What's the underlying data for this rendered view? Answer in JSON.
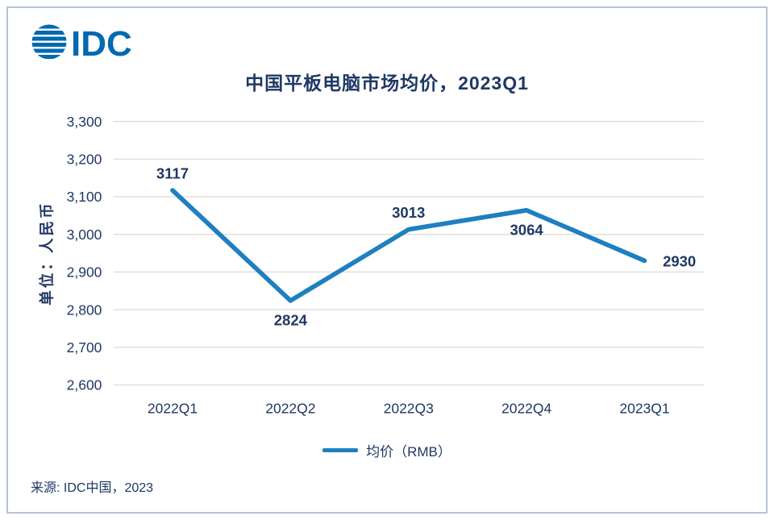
{
  "page": {
    "logo_text": "IDC",
    "title": "中国平板电脑市场均价，2023Q1",
    "source": "来源: IDC中国，2023"
  },
  "colors": {
    "navy_text": "#1F3864",
    "line": "#1E7FC1",
    "grid": "#D9D9D9",
    "logo_blue": "#0069B1",
    "border": "#B6C2D9"
  },
  "legend": {
    "label": "均价（RMB）"
  },
  "chart_data": {
    "type": "line",
    "title": "中国平板电脑市场均价，2023Q1",
    "categories": [
      "2022Q1",
      "2022Q2",
      "2022Q3",
      "2022Q4",
      "2023Q1"
    ],
    "series": [
      {
        "name": "均价（RMB）",
        "values": [
          3117,
          2824,
          3013,
          3064,
          2930
        ]
      }
    ],
    "xlabel": "",
    "ylabel": "单位：人民币",
    "ylim": [
      2600,
      3300
    ],
    "ytick_step": 100,
    "grid": true,
    "legend_position": "bottom",
    "label_positions": [
      "above",
      "below",
      "above",
      "below",
      "right"
    ]
  }
}
